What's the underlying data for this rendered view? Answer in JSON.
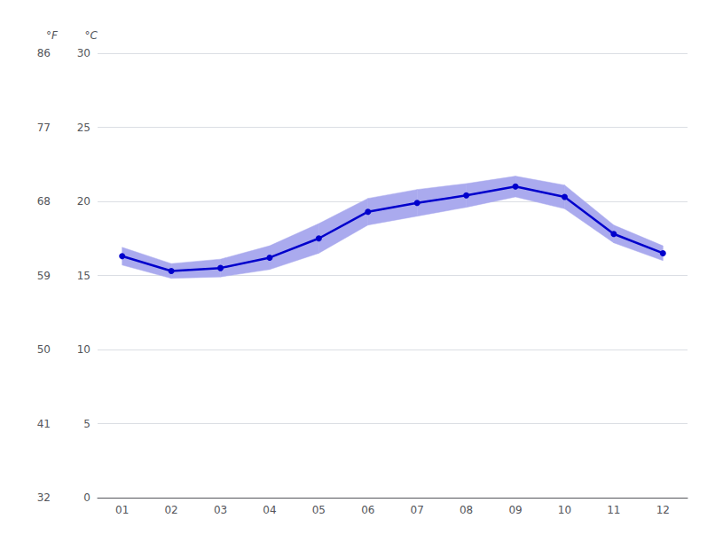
{
  "chart_data": {
    "type": "line",
    "x": [
      1,
      2,
      3,
      4,
      5,
      6,
      7,
      8,
      9,
      10,
      11,
      12
    ],
    "xlim": [
      0.5,
      12.5
    ],
    "xticks": [
      {
        "value": 1,
        "label": "01"
      },
      {
        "value": 2,
        "label": "02"
      },
      {
        "value": 3,
        "label": "03"
      },
      {
        "value": 4,
        "label": "04"
      },
      {
        "value": 5,
        "label": "05"
      },
      {
        "value": 6,
        "label": "06"
      },
      {
        "value": 7,
        "label": "07"
      },
      {
        "value": 8,
        "label": "08"
      },
      {
        "value": 9,
        "label": "09"
      },
      {
        "value": 10,
        "label": "10"
      },
      {
        "value": 11,
        "label": "11"
      },
      {
        "value": 12,
        "label": "12"
      }
    ],
    "series": [
      {
        "values": [
          16.3,
          15.3,
          15.5,
          16.2,
          17.5,
          19.3,
          19.9,
          20.4,
          21.0,
          20.3,
          17.8,
          16.5
        ],
        "color": "#0000cc",
        "marker": "circle"
      }
    ],
    "band": {
      "lower": [
        15.7,
        14.8,
        14.9,
        15.4,
        16.5,
        18.4,
        19.0,
        19.6,
        20.3,
        19.5,
        17.2,
        16.0
      ],
      "upper": [
        16.9,
        15.8,
        16.1,
        17.0,
        18.5,
        20.2,
        20.8,
        21.2,
        21.7,
        21.1,
        18.4,
        17.0
      ],
      "color": "#aaaaee"
    },
    "ylabel": "°C",
    "ylim": [
      0,
      30
    ],
    "yticks": [
      0,
      5,
      10,
      15,
      20,
      25,
      30
    ],
    "y2label": "°F",
    "y2lim": [
      32,
      86
    ],
    "y2ticks": [
      32,
      41,
      50,
      59,
      68,
      77,
      86
    ],
    "grid": true
  }
}
